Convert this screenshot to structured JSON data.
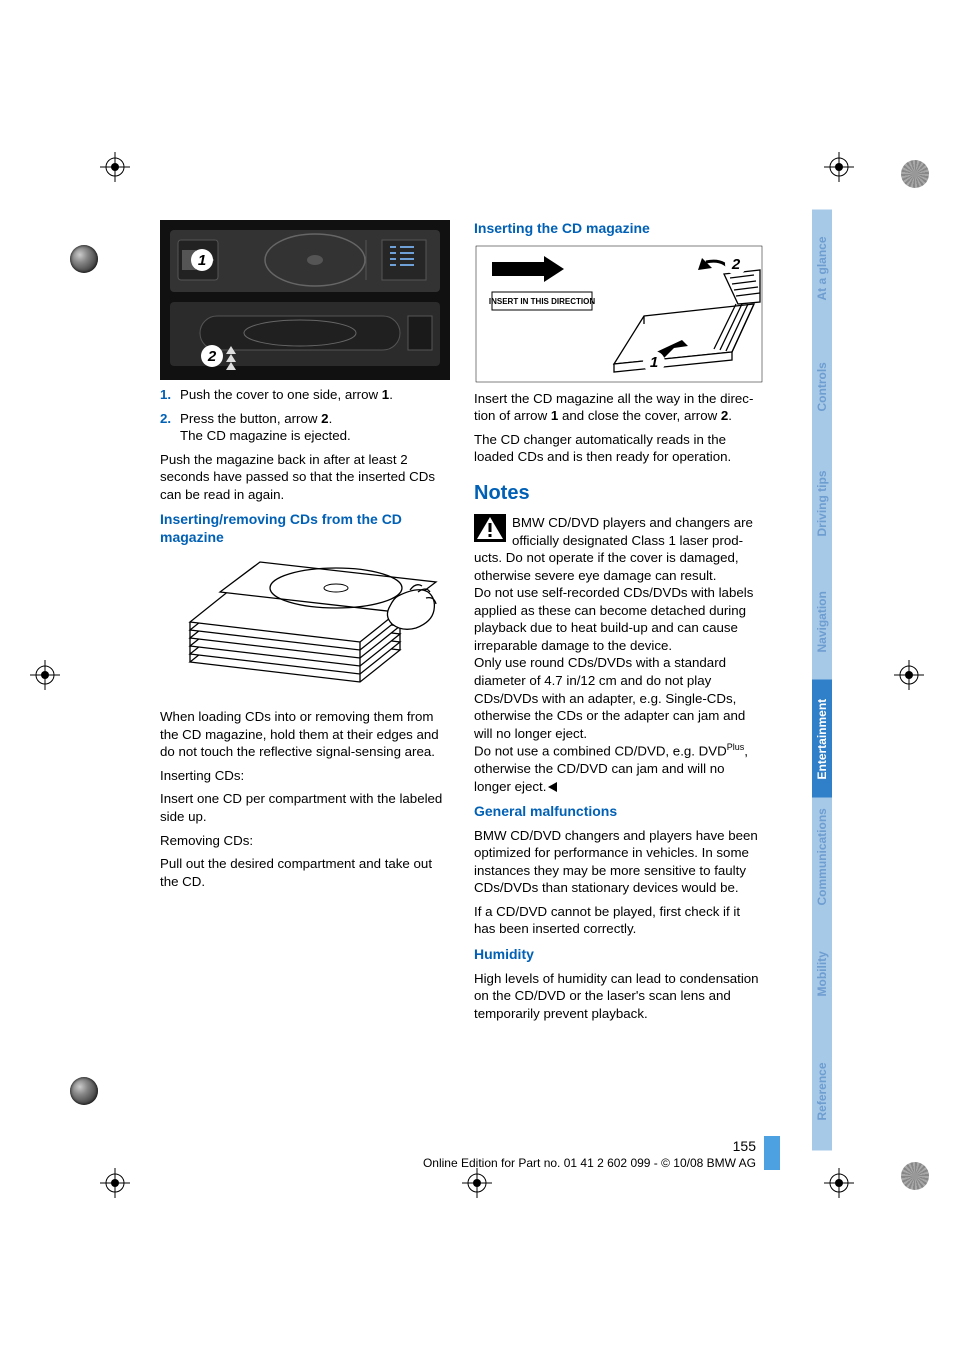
{
  "page": {
    "number": "155",
    "footer_line": "Online Edition for Part no. 01 41 2 602 099 - © 10/08 BMW AG"
  },
  "tabs": [
    {
      "label": "At a glance",
      "bg": "#a7c9e8",
      "fg": "#6e9dd0"
    },
    {
      "label": "Controls",
      "bg": "#a7c9e8",
      "fg": "#6e9dd0"
    },
    {
      "label": "Driving tips",
      "bg": "#a7c9e8",
      "fg": "#6e9dd0"
    },
    {
      "label": "Navigation",
      "bg": "#a7c9e8",
      "fg": "#6e9dd0"
    },
    {
      "label": "Entertainment",
      "bg": "#2f80c9",
      "fg": "#ffffff"
    },
    {
      "label": "Communications",
      "bg": "#a7c9e8",
      "fg": "#6e9dd0"
    },
    {
      "label": "Mobility",
      "bg": "#a7c9e8",
      "fg": "#6e9dd0"
    },
    {
      "label": "Reference",
      "bg": "#a7c9e8",
      "fg": "#6e9dd0"
    }
  ],
  "left": {
    "step1": {
      "num": "1.",
      "text_a": "Push the cover to one side, arrow ",
      "b": "1",
      "text_b": "."
    },
    "step2": {
      "num": "2.",
      "line1_a": "Press the button, arrow ",
      "b": "2",
      "line1_b": ".",
      "line2": "The CD magazine is ejected."
    },
    "push_back": "Push the magazine back in after at least 2 seconds have passed so that the inserted CDs can be read in again.",
    "h_insert_remove": "Inserting/removing CDs from the CD magazine",
    "loading": "When loading CDs into or removing them from the CD magazine, hold them at their edges and do not touch the reflective signal-sensing area.",
    "inserting_label": "Inserting CDs:",
    "inserting_body": "Insert one CD per compartment with the labeled side up.",
    "removing_label": "Removing CDs:",
    "removing_body": "Pull out the desired compartment and take out the CD."
  },
  "right": {
    "h_insert_mag": "Inserting the CD magazine",
    "insert_dir_label": "INSERT IN THIS DIRECTION",
    "diagram_numbers": {
      "one": "1",
      "two": "2"
    },
    "insert_text_a": "Insert the CD magazine all the way in the direc­tion of arrow ",
    "insert_b1": "1",
    "insert_text_b": " and close the cover, arrow ",
    "insert_b2": "2",
    "insert_text_c": ".",
    "auto_read": "The CD changer automatically reads in the loaded CDs and is then ready for operation.",
    "h_notes": "Notes",
    "warn_text": "BMW CD/DVD players and changers are officially designated Class 1 laser prod­ucts. Do not operate if the cover is damaged, otherwise severe eye damage can result.",
    "warn_p2": "Do not use self-recorded CDs/DVDs with labels applied as these can become detached during playback due to heat build-up and can cause irreparable damage to the device.",
    "warn_p3": "Only use round CDs/DVDs with a standard diameter of 4.7 in/12 cm and do not play CDs/DVDs with an adapter, e.g. Single-CDs, other­wise the CDs or the adapter can jam and will no longer eject.",
    "warn_p4_a": "Do not use a combined CD/DVD, e.g. DVD",
    "warn_p4_sup": "Plus",
    "warn_p4_b": ", otherwise the CD/DVD can jam and will no longer eject.",
    "h_general": "General malfunctions",
    "general_p1": "BMW CD/DVD changers and players have been optimized for performance in vehicles. In some instances they may be more sensitive to faulty CDs/DVDs than stationary devices would be.",
    "general_p2": "If a CD/DVD cannot be played, first check if it has been inserted correctly.",
    "h_humidity": "Humidity",
    "humidity_p": "High levels of humidity can lead to condensa­tion on the CD/DVD or the laser's scan lens and temporarily prevent playback."
  },
  "fig": {
    "changer": {
      "bg": "#1c1c1c",
      "body": "#3a3a3a",
      "accent": "#e0e0e0",
      "num_bg": "#ffffff",
      "num_fg": "#000000"
    },
    "magazine": {
      "bg": "#ffffff",
      "line": "#000000"
    },
    "insert": {
      "bg": "#ffffff",
      "line": "#000000",
      "arrow": "#000000"
    }
  }
}
